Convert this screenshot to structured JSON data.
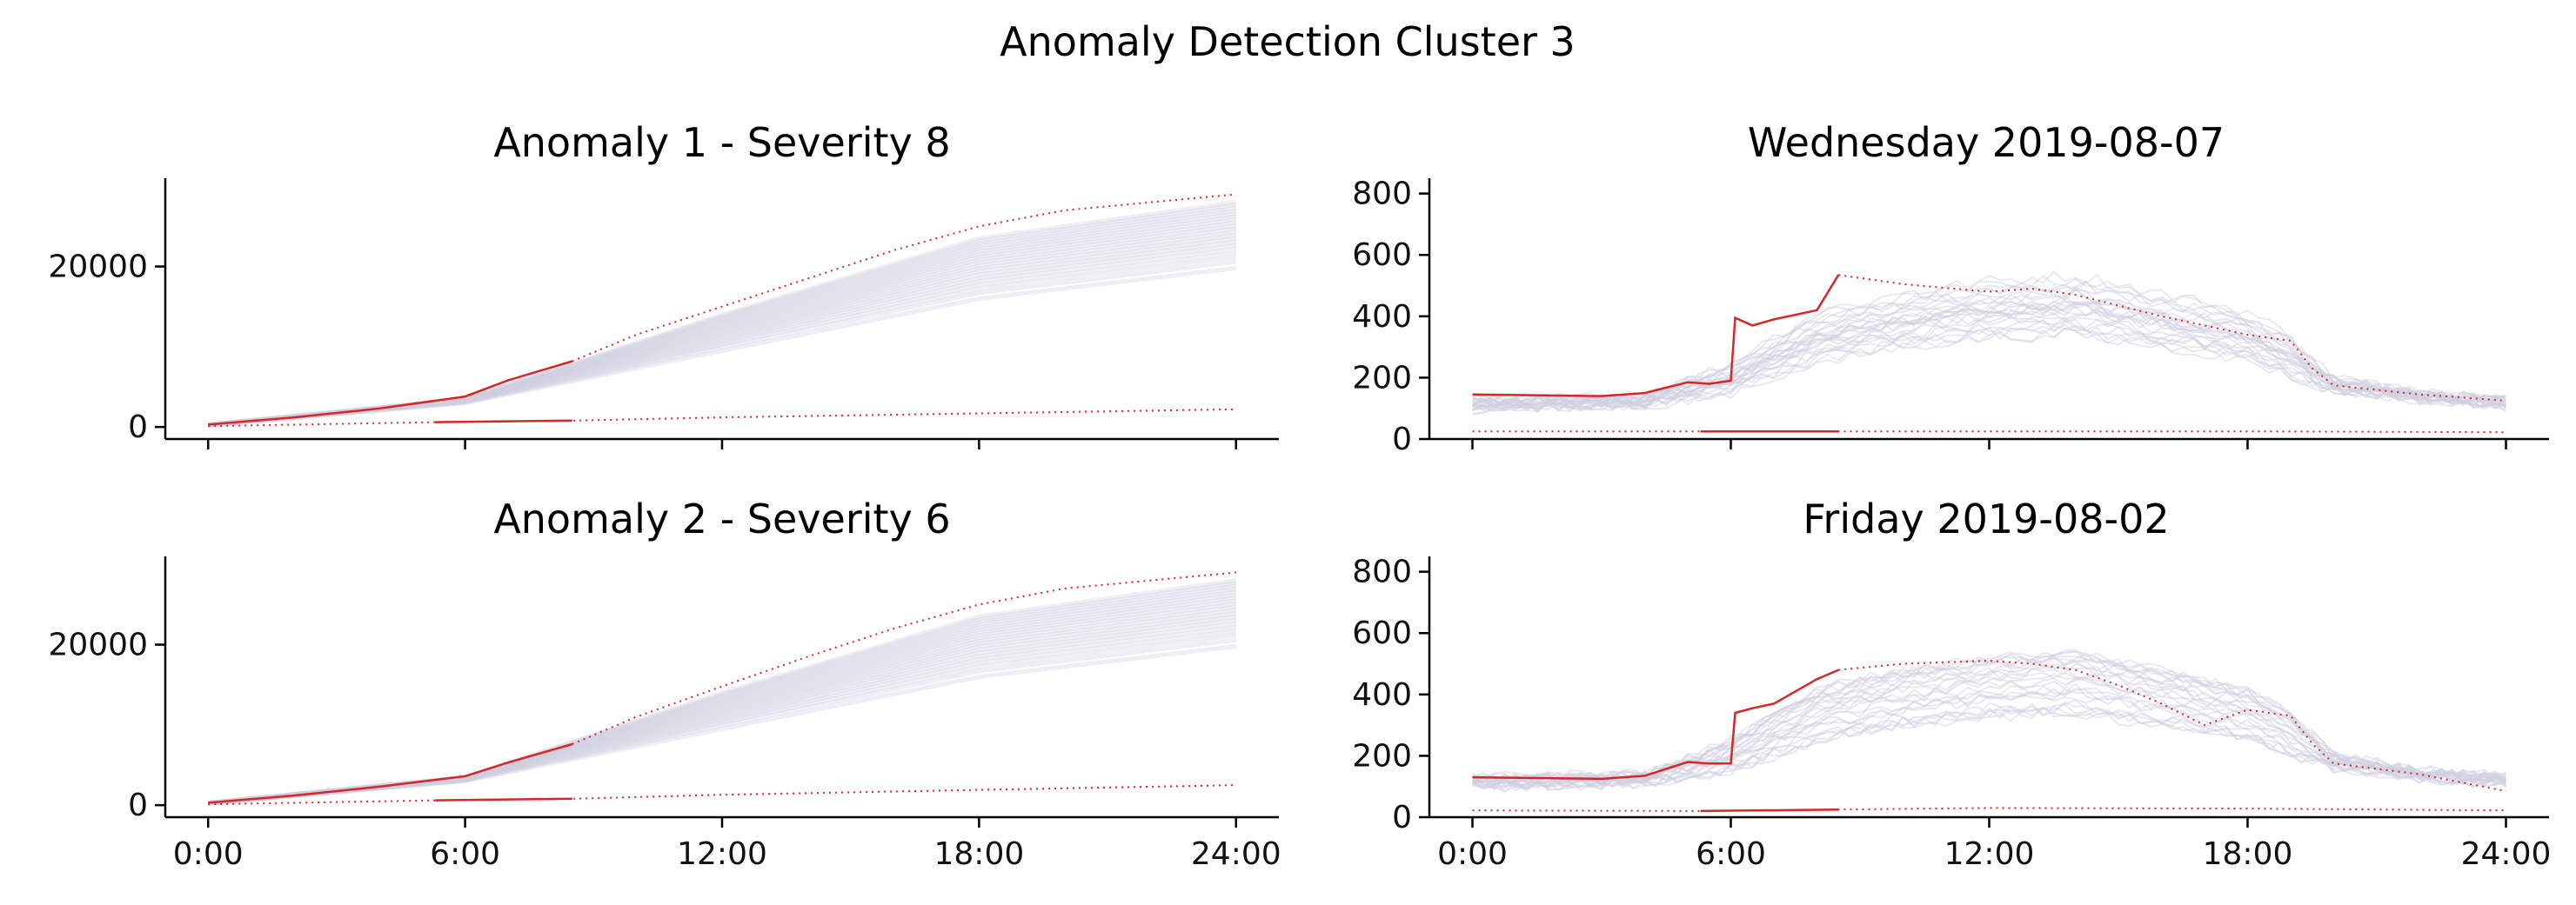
{
  "figure": {
    "title": "Anomaly Detection Cluster 3"
  },
  "colors": {
    "reference": "#cfcfe0",
    "highlight": "#d62728",
    "axis": "#000000"
  },
  "chart_data": [
    {
      "type": "line",
      "title": "Anomaly 1 - Severity 8",
      "xlabel": "",
      "ylabel": "",
      "x_ticks": [
        "0:00",
        "6:00",
        "12:00",
        "18:00",
        "24:00"
      ],
      "show_x_tick_labels": false,
      "y_ticks": [
        "0",
        "20000"
      ],
      "xlim": [
        -1,
        25
      ],
      "ylim": [
        -1500,
        31000
      ],
      "grid": false,
      "legend": "none",
      "series": [
        {
          "role": "reference-band",
          "x": [
            0,
            6,
            12,
            18,
            24
          ],
          "lower": [
            200,
            3000,
            9500,
            16000,
            19800
          ],
          "upper": [
            300,
            3500,
            14000,
            23500,
            28000
          ]
        },
        {
          "role": "anomaly-observed",
          "style": "solid",
          "x": [
            0,
            2,
            4,
            6,
            7,
            8.5
          ],
          "values": [
            300,
            1200,
            2300,
            3800,
            5800,
            8200
          ]
        },
        {
          "role": "anomaly-expected",
          "style": "dotted",
          "x": [
            8.5,
            10,
            12,
            14,
            16,
            18,
            20,
            22,
            24
          ],
          "values": [
            8200,
            11500,
            15000,
            18500,
            22000,
            25000,
            27000,
            28000,
            29000
          ]
        },
        {
          "role": "baseline-observed",
          "style": "solid",
          "x": [
            5.3,
            8.5
          ],
          "values": [
            600,
            800
          ]
        },
        {
          "role": "baseline-expected",
          "style": "dotted",
          "x": [
            0,
            5.3,
            8.5,
            12,
            18,
            24
          ],
          "values": [
            100,
            600,
            800,
            1200,
            1700,
            2200
          ]
        }
      ]
    },
    {
      "type": "line",
      "title": "Wednesday 2019-08-07",
      "xlabel": "",
      "ylabel": "",
      "x_ticks": [
        "0:00",
        "6:00",
        "12:00",
        "18:00",
        "24:00"
      ],
      "show_x_tick_labels": false,
      "y_ticks": [
        "0",
        "200",
        "400",
        "600",
        "800"
      ],
      "xlim": [
        -1,
        25
      ],
      "ylim": [
        0,
        850
      ],
      "grid": false,
      "legend": "none",
      "series": [
        {
          "role": "reference-band",
          "x": [
            0,
            4,
            6,
            8,
            10,
            12,
            14,
            16,
            18,
            19,
            20,
            22,
            24
          ],
          "lower": [
            100,
            110,
            150,
            250,
            300,
            330,
            340,
            300,
            260,
            200,
            160,
            130,
            110
          ],
          "upper": [
            130,
            140,
            250,
            420,
            480,
            520,
            540,
            480,
            420,
            340,
            200,
            150,
            130
          ]
        },
        {
          "role": "anomaly-observed",
          "style": "solid",
          "x": [
            0,
            3,
            4,
            5,
            5.5,
            6,
            6.1,
            6.5,
            7,
            8,
            8.5
          ],
          "values": [
            145,
            140,
            150,
            185,
            180,
            190,
            395,
            370,
            390,
            420,
            535
          ]
        },
        {
          "role": "anomaly-expected",
          "style": "dotted",
          "x": [
            8.5,
            10,
            12,
            13,
            14,
            16,
            18,
            19,
            19.5,
            20,
            22,
            24
          ],
          "values": [
            535,
            505,
            480,
            490,
            470,
            400,
            340,
            320,
            230,
            175,
            145,
            125
          ]
        },
        {
          "role": "baseline-observed",
          "style": "solid",
          "x": [
            5.3,
            8.5
          ],
          "values": [
            25,
            25
          ]
        },
        {
          "role": "baseline-expected",
          "style": "dotted",
          "x": [
            0,
            5.3,
            8.5,
            12,
            18,
            24
          ],
          "values": [
            25,
            25,
            25,
            25,
            25,
            22
          ]
        }
      ]
    },
    {
      "type": "line",
      "title": "Anomaly 2 - Severity 6",
      "xlabel": "",
      "ylabel": "",
      "x_ticks": [
        "0:00",
        "6:00",
        "12:00",
        "18:00",
        "24:00"
      ],
      "show_x_tick_labels": true,
      "y_ticks": [
        "0",
        "20000"
      ],
      "xlim": [
        -1,
        25
      ],
      "ylim": [
        -1500,
        31000
      ],
      "grid": false,
      "legend": "none",
      "series": [
        {
          "role": "reference-band",
          "x": [
            0,
            6,
            12,
            18,
            24
          ],
          "lower": [
            200,
            3000,
            9500,
            16000,
            19800
          ],
          "upper": [
            300,
            3500,
            14000,
            23500,
            28000
          ]
        },
        {
          "role": "anomaly-observed",
          "style": "solid",
          "x": [
            0,
            2,
            4,
            6,
            7,
            8.5
          ],
          "values": [
            300,
            1200,
            2300,
            3600,
            5300,
            7600
          ]
        },
        {
          "role": "anomaly-expected",
          "style": "dotted",
          "x": [
            8.5,
            10,
            12,
            14,
            16,
            18,
            20,
            22,
            24
          ],
          "values": [
            7600,
            11000,
            14800,
            18500,
            22000,
            25000,
            27000,
            28000,
            29000
          ]
        },
        {
          "role": "baseline-observed",
          "style": "solid",
          "x": [
            5.3,
            8.5
          ],
          "values": [
            600,
            800
          ]
        },
        {
          "role": "baseline-expected",
          "style": "dotted",
          "x": [
            0,
            5.3,
            8.5,
            12,
            18,
            24
          ],
          "values": [
            100,
            600,
            800,
            1300,
            1900,
            2500
          ]
        }
      ]
    },
    {
      "type": "line",
      "title": "Friday 2019-08-02",
      "xlabel": "",
      "ylabel": "",
      "x_ticks": [
        "0:00",
        "6:00",
        "12:00",
        "18:00",
        "24:00"
      ],
      "show_x_tick_labels": true,
      "y_ticks": [
        "0",
        "200",
        "400",
        "600",
        "800"
      ],
      "xlim": [
        -1,
        25
      ],
      "ylim": [
        0,
        850
      ],
      "grid": false,
      "legend": "none",
      "series": [
        {
          "role": "reference-band",
          "x": [
            0,
            4,
            6,
            8,
            10,
            12,
            14,
            16,
            18,
            19,
            20,
            22,
            24
          ],
          "lower": [
            100,
            110,
            150,
            250,
            300,
            330,
            340,
            300,
            260,
            200,
            160,
            130,
            110
          ],
          "upper": [
            130,
            140,
            250,
            420,
            480,
            520,
            540,
            480,
            420,
            340,
            200,
            150,
            130
          ]
        },
        {
          "role": "anomaly-observed",
          "style": "solid",
          "x": [
            0,
            3,
            4,
            5,
            5.5,
            6,
            6.1,
            6.5,
            7,
            8,
            8.5
          ],
          "values": [
            130,
            125,
            135,
            180,
            175,
            175,
            340,
            355,
            370,
            450,
            480
          ]
        },
        {
          "role": "anomaly-expected",
          "style": "dotted",
          "x": [
            8.5,
            10,
            12,
            13,
            14,
            15,
            16,
            17,
            18,
            19,
            19.5,
            20,
            22,
            24
          ],
          "values": [
            480,
            500,
            510,
            500,
            480,
            430,
            370,
            300,
            350,
            330,
            240,
            175,
            140,
            85
          ]
        },
        {
          "role": "baseline-observed",
          "style": "solid",
          "x": [
            5.3,
            8.5
          ],
          "values": [
            20,
            25
          ]
        },
        {
          "role": "baseline-expected",
          "style": "dotted",
          "x": [
            0,
            5.3,
            8.5,
            12,
            18,
            24
          ],
          "values": [
            22,
            20,
            25,
            30,
            28,
            22
          ]
        }
      ]
    }
  ]
}
